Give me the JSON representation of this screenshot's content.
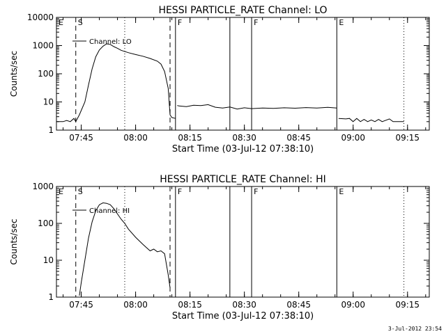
{
  "chart_data": [
    {
      "type": "line",
      "title": "HESSI PARTICLE_RATE Channel: LO",
      "xlabel": "Start Time (03-Jul-12 07:38:10)",
      "ylabel": "Counts/sec",
      "y_scale": "log",
      "xlim": [
        "07:38:10",
        "09:21:00"
      ],
      "ylim": [
        1,
        10000
      ],
      "x_ticks": [
        "07:45",
        "08:00",
        "08:15",
        "08:30",
        "08:45",
        "09:00",
        "09:15"
      ],
      "y_ticks": [
        "1",
        "10",
        "100",
        "1000",
        "10000"
      ],
      "legend": {
        "label": "Channel: LO",
        "placement": "top-left"
      },
      "grid": false,
      "series": [
        {
          "points": [
            [
              "07:38:10",
              2
            ],
            [
              "07:40",
              2
            ],
            [
              "07:41",
              2.2
            ],
            [
              "07:42",
              2
            ],
            [
              "07:43",
              2.6
            ],
            [
              "07:43:30",
              2
            ],
            [
              "07:44:30",
              3.5
            ],
            [
              "07:46",
              10
            ],
            [
              "07:47",
              40
            ],
            [
              "07:48",
              150
            ],
            [
              "07:49",
              400
            ],
            [
              "07:50",
              700
            ],
            [
              "07:51",
              950
            ],
            [
              "07:52",
              1150
            ],
            [
              "07:53",
              1100
            ],
            [
              "07:54",
              920
            ],
            [
              "07:55",
              800
            ],
            [
              "07:56",
              680
            ],
            [
              "07:58",
              560
            ],
            [
              "08:00",
              480
            ],
            [
              "08:02",
              420
            ],
            [
              "08:04",
              350
            ],
            [
              "08:06",
              280
            ],
            [
              "08:07",
              220
            ],
            [
              "08:08",
              120
            ],
            [
              "08:09",
              30
            ],
            [
              "08:09:30",
              3.5
            ],
            [
              "08:10",
              2.8
            ],
            [
              "08:11",
              2.6
            ]
          ]
        },
        {
          "points": [
            [
              "08:11:30",
              7.5
            ],
            [
              "08:12",
              7.2
            ],
            [
              "08:14",
              6.8
            ],
            [
              "08:16",
              7.6
            ],
            [
              "08:18",
              7.4
            ],
            [
              "08:20",
              8
            ],
            [
              "08:22",
              6.5
            ],
            [
              "08:24",
              6.1
            ],
            [
              "08:26",
              6.6
            ],
            [
              "08:28",
              5.6
            ],
            [
              "08:30",
              6.2
            ],
            [
              "08:32",
              5.8
            ],
            [
              "08:35",
              6.1
            ],
            [
              "08:38",
              5.9
            ],
            [
              "08:41",
              6.2
            ],
            [
              "08:44",
              6
            ],
            [
              "08:47",
              6.3
            ],
            [
              "08:50",
              6.1
            ],
            [
              "08:53",
              6.4
            ],
            [
              "08:55:30",
              6.1
            ]
          ]
        },
        {
          "points": [
            [
              "08:56",
              2.6
            ],
            [
              "08:58",
              2.5
            ],
            [
              "08:59",
              2.6
            ],
            [
              "09:00",
              2
            ],
            [
              "09:01",
              2.6
            ],
            [
              "09:02",
              2
            ],
            [
              "09:03",
              2.4
            ],
            [
              "09:04",
              2
            ],
            [
              "09:05",
              2.3
            ],
            [
              "09:06",
              2
            ],
            [
              "09:07",
              2.4
            ],
            [
              "09:08",
              2
            ],
            [
              "09:10",
              2.5
            ],
            [
              "09:11",
              2
            ],
            [
              "09:14",
              2
            ]
          ]
        }
      ],
      "markers": [
        {
          "label": "E",
          "time": "07:38:10",
          "style": "solid"
        },
        {
          "label": "S",
          "time": "07:43:30",
          "style": "dashed"
        },
        {
          "label": "",
          "time": "07:57",
          "style": "dotted"
        },
        {
          "label": "",
          "time": "08:09:30",
          "style": "dashed"
        },
        {
          "label": "F",
          "time": "08:11:00",
          "style": "solid"
        },
        {
          "label": "",
          "time": "08:26:00",
          "style": "solid"
        },
        {
          "label": "F",
          "time": "08:32:00",
          "style": "solid"
        },
        {
          "label": "E",
          "time": "08:55:30",
          "style": "solid"
        },
        {
          "label": "",
          "time": "09:14:00",
          "style": "dotted"
        }
      ]
    },
    {
      "type": "line",
      "title": "HESSI PARTICLE_RATE Channel: HI",
      "xlabel": "Start Time (03-Jul-12 07:38:10)",
      "ylabel": "Counts/sec",
      "y_scale": "log",
      "xlim": [
        "07:38:10",
        "09:21:00"
      ],
      "ylim": [
        1,
        1000
      ],
      "x_ticks": [
        "07:45",
        "08:00",
        "08:15",
        "08:30",
        "08:45",
        "09:00",
        "09:15"
      ],
      "y_ticks": [
        "1",
        "10",
        "100",
        "1000"
      ],
      "legend": {
        "label": "Channel: HI",
        "placement": "top-left"
      },
      "grid": false,
      "series": [
        {
          "points": [
            [
              "07:44:30",
              1.1
            ],
            [
              "07:45",
              2.5
            ],
            [
              "07:46",
              10
            ],
            [
              "07:47",
              40
            ],
            [
              "07:48",
              110
            ],
            [
              "07:49",
              220
            ],
            [
              "07:50",
              320
            ],
            [
              "07:51",
              360
            ],
            [
              "07:52",
              350
            ],
            [
              "07:53",
              320
            ],
            [
              "07:54",
              250
            ],
            [
              "07:55",
              180
            ],
            [
              "07:56",
              130
            ],
            [
              "07:57",
              100
            ],
            [
              "07:58",
              70
            ],
            [
              "08:00",
              42
            ],
            [
              "08:02",
              27
            ],
            [
              "08:03",
              22
            ],
            [
              "08:04",
              18
            ],
            [
              "08:05",
              20
            ],
            [
              "08:06",
              17
            ],
            [
              "08:07",
              18
            ],
            [
              "08:08",
              15
            ],
            [
              "08:09",
              4
            ],
            [
              "08:09:30",
              1.8
            ]
          ]
        }
      ],
      "markers": [
        {
          "label": "E",
          "time": "07:38:10",
          "style": "solid"
        },
        {
          "label": "S",
          "time": "07:43:30",
          "style": "dashed"
        },
        {
          "label": "",
          "time": "07:57",
          "style": "dotted"
        },
        {
          "label": "",
          "time": "08:09:30",
          "style": "dashed"
        },
        {
          "label": "F",
          "time": "08:11:00",
          "style": "solid"
        },
        {
          "label": "",
          "time": "08:26:00",
          "style": "solid"
        },
        {
          "label": "F",
          "time": "08:32:00",
          "style": "solid"
        },
        {
          "label": "E",
          "time": "08:55:30",
          "style": "solid"
        },
        {
          "label": "",
          "time": "09:14:00",
          "style": "dotted"
        }
      ]
    }
  ],
  "footer": "3-Jul-2012 23:54"
}
